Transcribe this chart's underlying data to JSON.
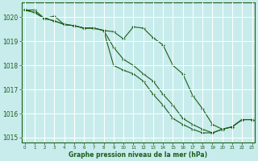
{
  "title": "Graphe pression niveau de la mer (hPa)",
  "background_color": "#c8ecec",
  "grid_color": "#ffffff",
  "line_color": "#1a5e1a",
  "text_color": "#1a5e1a",
  "hours": [
    0,
    1,
    2,
    3,
    4,
    5,
    6,
    7,
    8,
    9,
    10,
    11,
    12,
    13,
    14,
    15,
    16,
    17,
    18,
    19,
    20,
    21,
    22,
    23
  ],
  "line1": [
    1020.3,
    1020.3,
    1019.95,
    1020.05,
    1019.7,
    1019.65,
    1019.55,
    1019.55,
    1019.45,
    1019.4,
    1019.1,
    1019.6,
    1019.55,
    1019.15,
    1018.85,
    1018.0,
    1017.65,
    1016.75,
    1016.2,
    1015.55,
    1015.35,
    1015.45,
    1015.75,
    1015.75
  ],
  "line2": [
    1020.3,
    1020.2,
    1019.95,
    1019.85,
    1019.7,
    1019.65,
    1019.55,
    1019.55,
    1019.45,
    1018.75,
    1018.25,
    1018.0,
    1017.65,
    1017.35,
    1016.8,
    1016.35,
    1015.8,
    1015.55,
    1015.35,
    1015.2,
    1015.35,
    1015.45,
    1015.75,
    1015.75
  ],
  "line3": [
    1020.3,
    1020.2,
    1019.95,
    1019.85,
    1019.7,
    1019.65,
    1019.55,
    1019.55,
    1019.45,
    1018.0,
    1017.8,
    1017.65,
    1017.35,
    1016.8,
    1016.35,
    1015.8,
    1015.55,
    1015.35,
    1015.2,
    1015.2,
    1015.35,
    1015.45,
    1015.75,
    1015.75
  ],
  "ylim_min": 1014.8,
  "ylim_max": 1020.6,
  "yticks": [
    1015,
    1016,
    1017,
    1018,
    1019,
    1020
  ],
  "xlim_min": -0.3,
  "xlim_max": 23.3,
  "marker": "+"
}
